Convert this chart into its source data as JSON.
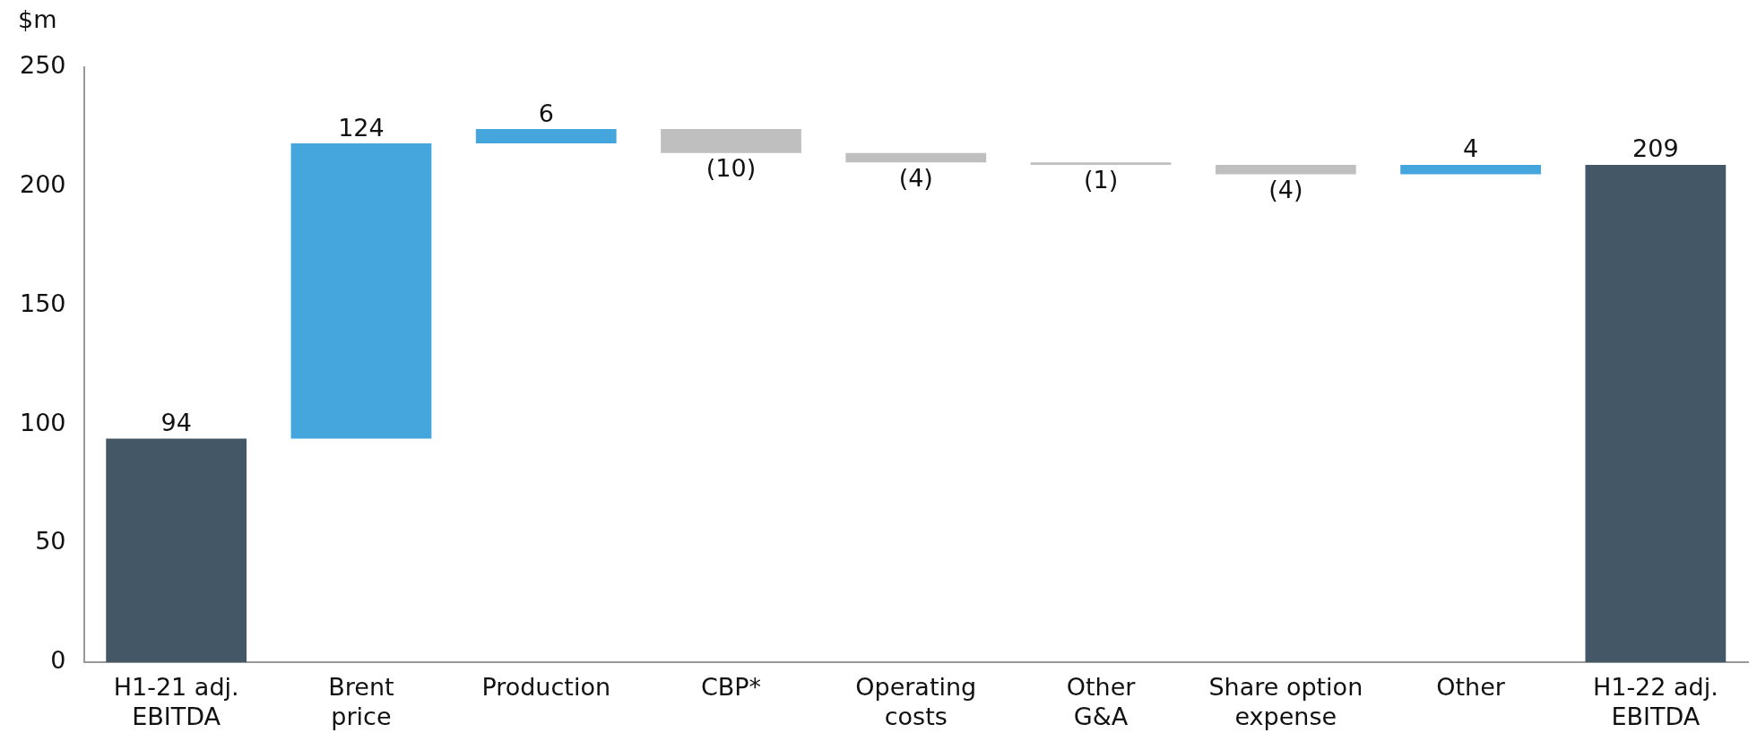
{
  "chart_data": {
    "type": "bar",
    "ylabel": "$m",
    "categories": [
      "H1-21 adj.\nEBITDA",
      "Brent\nprice",
      "Production",
      "CBP*",
      "Operating\ncosts",
      "Other\nG&A",
      "Share option\nexpense",
      "Other",
      "H1-22 adj.\nEBITDA"
    ],
    "values": [
      94,
      124,
      6,
      -10,
      -4,
      -1,
      -4,
      4,
      209
    ],
    "base": [
      0,
      94,
      218,
      224,
      214,
      210,
      209,
      205,
      0
    ],
    "colors": [
      "#435767",
      "#45a6dd",
      "#45a6dd",
      "#bfbfbf",
      "#bfbfbf",
      "#bfbfbf",
      "#bfbfbf",
      "#45a6dd",
      "#435767"
    ],
    "value_labels": [
      "94",
      "124",
      "6",
      "(10)",
      "(4)",
      "(1)",
      "(4)",
      "4",
      "209"
    ],
    "ylim": [
      0,
      250
    ],
    "yticks": [
      0,
      50,
      100,
      150,
      200,
      250
    ],
    "grid": false,
    "legend": false
  }
}
